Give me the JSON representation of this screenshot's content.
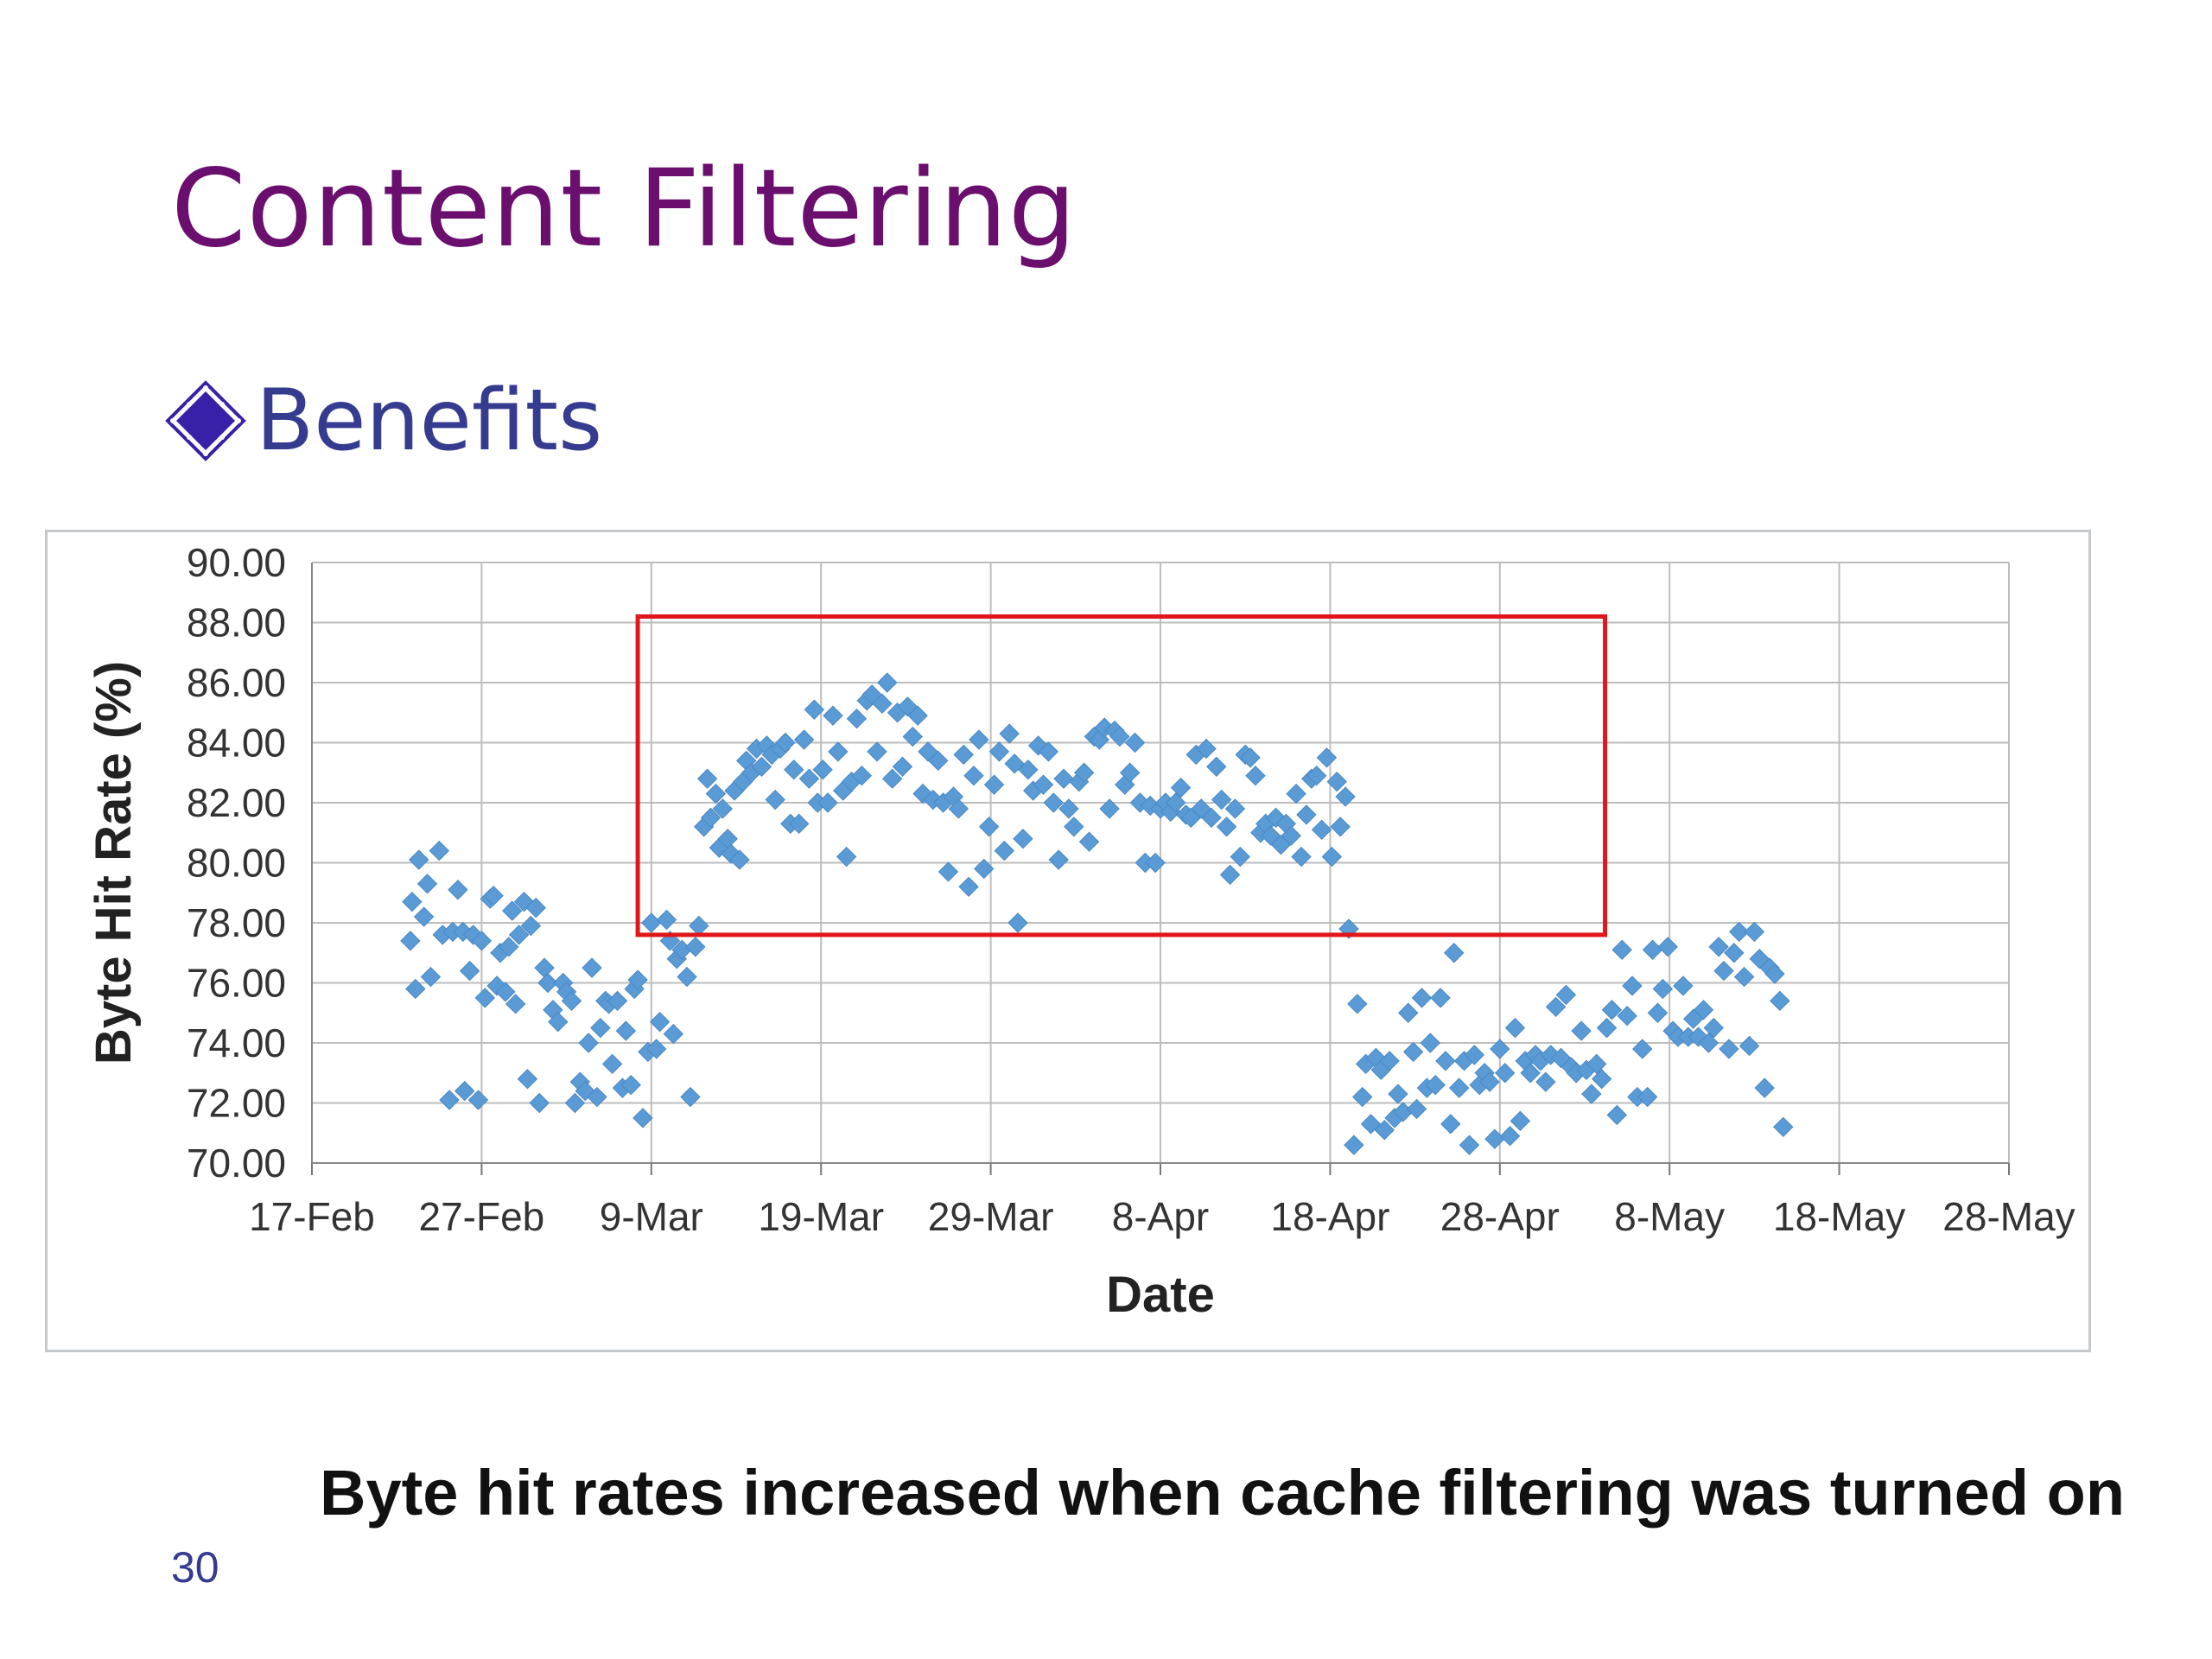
{
  "slide": {
    "title": "Content Filtering",
    "bullet": "Benefits",
    "caption": "Byte hit rates increased when cache filtering was turned on",
    "page_number": "30"
  },
  "colors": {
    "title": "#6a0f6e",
    "bullet_text": "#353b8f",
    "bullet_icon": "#3a1fa8",
    "marker": "#5b9bd5",
    "highlight_box": "#e0161b",
    "grid": "#bdbdbd"
  },
  "chart_data": {
    "type": "scatter",
    "xlabel": "Date",
    "ylabel": "Byte Hit Rate (%)",
    "ylim": [
      70,
      90
    ],
    "y_ticks": [
      "70.00",
      "72.00",
      "74.00",
      "76.00",
      "78.00",
      "80.00",
      "82.00",
      "84.00",
      "86.00",
      "88.00",
      "90.00"
    ],
    "x_ticks": [
      "17-Feb",
      "27-Feb",
      "9-Mar",
      "19-Mar",
      "29-Mar",
      "8-Apr",
      "18-Apr",
      "28-Apr",
      "8-May",
      "18-May",
      "28-May"
    ],
    "x_tick_days": [
      0,
      10,
      20,
      30,
      40,
      50,
      60,
      70,
      80,
      90,
      100
    ],
    "grid": true,
    "marker": "diamond",
    "highlight_region": {
      "x_range_days": [
        19.2,
        76.2
      ],
      "y_range": [
        77.6,
        88.2
      ]
    },
    "points": [
      [
        5.8,
        77.4
      ],
      [
        5.9,
        78.7
      ],
      [
        6.1,
        75.8
      ],
      [
        6.3,
        80.1
      ],
      [
        6.6,
        78.2
      ],
      [
        6.8,
        79.3
      ],
      [
        7.0,
        76.2
      ],
      [
        7.5,
        80.4
      ],
      [
        7.7,
        77.6
      ],
      [
        8.1,
        72.1
      ],
      [
        8.3,
        77.7
      ],
      [
        8.6,
        79.1
      ],
      [
        8.9,
        77.7
      ],
      [
        9.0,
        72.4
      ],
      [
        9.3,
        76.4
      ],
      [
        9.5,
        77.6
      ],
      [
        9.8,
        72.1
      ],
      [
        10.0,
        77.4
      ],
      [
        10.2,
        75.5
      ],
      [
        10.5,
        78.8
      ],
      [
        10.7,
        78.9
      ],
      [
        10.9,
        75.9
      ],
      [
        11.1,
        77.0
      ],
      [
        11.4,
        75.7
      ],
      [
        11.6,
        77.2
      ],
      [
        11.8,
        78.4
      ],
      [
        12.0,
        75.3
      ],
      [
        12.2,
        77.6
      ],
      [
        12.5,
        78.7
      ],
      [
        12.7,
        72.8
      ],
      [
        12.9,
        77.9
      ],
      [
        13.2,
        78.5
      ],
      [
        13.4,
        72.0
      ],
      [
        13.7,
        76.5
      ],
      [
        13.9,
        76.0
      ],
      [
        14.2,
        75.1
      ],
      [
        14.5,
        74.7
      ],
      [
        14.8,
        76.0
      ],
      [
        15.0,
        75.7
      ],
      [
        15.3,
        75.4
      ],
      [
        15.5,
        72.0
      ],
      [
        15.8,
        72.7
      ],
      [
        16.1,
        72.4
      ],
      [
        16.3,
        74.0
      ],
      [
        16.5,
        76.5
      ],
      [
        16.8,
        72.2
      ],
      [
        17.0,
        74.5
      ],
      [
        17.3,
        75.4
      ],
      [
        17.5,
        75.3
      ],
      [
        17.7,
        73.3
      ],
      [
        18.0,
        75.4
      ],
      [
        18.3,
        72.5
      ],
      [
        18.5,
        74.4
      ],
      [
        18.8,
        72.6
      ],
      [
        19.0,
        75.8
      ],
      [
        19.2,
        76.1
      ],
      [
        19.5,
        71.5
      ],
      [
        19.8,
        73.7
      ],
      [
        20.0,
        78.0
      ],
      [
        20.3,
        73.8
      ],
      [
        20.5,
        74.7
      ],
      [
        20.9,
        78.1
      ],
      [
        21.1,
        77.4
      ],
      [
        21.3,
        74.3
      ],
      [
        21.5,
        76.8
      ],
      [
        21.8,
        77.1
      ],
      [
        22.1,
        76.2
      ],
      [
        22.3,
        72.2
      ],
      [
        22.6,
        77.2
      ],
      [
        22.8,
        77.9
      ],
      [
        23.1,
        81.2
      ],
      [
        23.3,
        82.8
      ],
      [
        23.5,
        81.5
      ],
      [
        23.8,
        82.3
      ],
      [
        24.0,
        80.5
      ],
      [
        24.2,
        81.8
      ],
      [
        24.5,
        80.8
      ],
      [
        24.7,
        80.3
      ],
      [
        24.9,
        82.4
      ],
      [
        25.2,
        80.1
      ],
      [
        25.4,
        82.7
      ],
      [
        25.6,
        83.4
      ],
      [
        25.9,
        83.0
      ],
      [
        26.2,
        83.8
      ],
      [
        26.5,
        83.2
      ],
      [
        26.8,
        83.9
      ],
      [
        27.1,
        83.6
      ],
      [
        27.3,
        82.1
      ],
      [
        27.6,
        83.8
      ],
      [
        27.9,
        84.0
      ],
      [
        28.2,
        81.3
      ],
      [
        28.4,
        83.1
      ],
      [
        28.7,
        81.3
      ],
      [
        29.0,
        84.1
      ],
      [
        29.3,
        82.8
      ],
      [
        29.6,
        85.1
      ],
      [
        29.8,
        82.0
      ],
      [
        30.1,
        83.1
      ],
      [
        30.4,
        82.0
      ],
      [
        30.7,
        84.9
      ],
      [
        31.0,
        83.7
      ],
      [
        31.3,
        82.4
      ],
      [
        31.5,
        80.2
      ],
      [
        31.8,
        82.7
      ],
      [
        32.1,
        84.8
      ],
      [
        32.4,
        82.9
      ],
      [
        32.7,
        85.4
      ],
      [
        33.0,
        85.6
      ],
      [
        33.3,
        83.7
      ],
      [
        33.6,
        85.3
      ],
      [
        33.9,
        86.0
      ],
      [
        34.2,
        82.8
      ],
      [
        34.5,
        85.0
      ],
      [
        34.8,
        83.2
      ],
      [
        35.1,
        85.2
      ],
      [
        35.4,
        84.2
      ],
      [
        35.7,
        84.9
      ],
      [
        36.0,
        82.3
      ],
      [
        36.3,
        83.7
      ],
      [
        36.6,
        82.1
      ],
      [
        36.9,
        83.4
      ],
      [
        37.2,
        82.0
      ],
      [
        37.5,
        79.7
      ],
      [
        37.8,
        82.2
      ],
      [
        38.1,
        81.8
      ],
      [
        38.4,
        83.6
      ],
      [
        38.7,
        79.2
      ],
      [
        39.0,
        82.9
      ],
      [
        39.3,
        84.1
      ],
      [
        39.6,
        79.8
      ],
      [
        39.9,
        81.2
      ],
      [
        40.2,
        82.6
      ],
      [
        40.5,
        83.7
      ],
      [
        40.8,
        80.4
      ],
      [
        41.1,
        84.3
      ],
      [
        41.4,
        83.3
      ],
      [
        41.6,
        78.0
      ],
      [
        41.9,
        80.8
      ],
      [
        42.2,
        83.1
      ],
      [
        42.5,
        82.4
      ],
      [
        42.8,
        83.9
      ],
      [
        43.1,
        82.6
      ],
      [
        43.4,
        83.7
      ],
      [
        43.7,
        82.0
      ],
      [
        44.0,
        80.1
      ],
      [
        44.3,
        82.8
      ],
      [
        44.6,
        81.8
      ],
      [
        44.9,
        81.2
      ],
      [
        45.2,
        82.7
      ],
      [
        45.5,
        83.0
      ],
      [
        45.8,
        80.7
      ],
      [
        46.1,
        84.2
      ],
      [
        46.4,
        84.1
      ],
      [
        46.7,
        84.5
      ],
      [
        47.0,
        81.8
      ],
      [
        47.3,
        84.4
      ],
      [
        47.6,
        84.2
      ],
      [
        47.9,
        82.6
      ],
      [
        48.2,
        83.0
      ],
      [
        48.5,
        84.0
      ],
      [
        48.8,
        82.0
      ],
      [
        49.1,
        80.0
      ],
      [
        49.4,
        81.9
      ],
      [
        49.7,
        80.0
      ],
      [
        50.0,
        81.8
      ],
      [
        50.3,
        82.0
      ],
      [
        50.6,
        81.7
      ],
      [
        50.9,
        82.0
      ],
      [
        51.2,
        82.5
      ],
      [
        51.5,
        81.6
      ],
      [
        51.8,
        81.5
      ],
      [
        52.1,
        83.6
      ],
      [
        52.4,
        81.8
      ],
      [
        52.7,
        83.8
      ],
      [
        53.0,
        81.5
      ],
      [
        53.3,
        83.2
      ],
      [
        53.6,
        82.1
      ],
      [
        53.9,
        81.2
      ],
      [
        54.1,
        79.6
      ],
      [
        54.4,
        81.8
      ],
      [
        54.7,
        80.2
      ],
      [
        55.0,
        83.6
      ],
      [
        55.3,
        83.5
      ],
      [
        55.6,
        82.9
      ],
      [
        55.9,
        81.0
      ],
      [
        56.2,
        81.3
      ],
      [
        56.5,
        80.9
      ],
      [
        56.8,
        81.5
      ],
      [
        57.1,
        80.6
      ],
      [
        57.4,
        81.3
      ],
      [
        57.7,
        80.9
      ],
      [
        58.0,
        82.3
      ],
      [
        58.3,
        80.2
      ],
      [
        58.6,
        81.6
      ],
      [
        58.9,
        82.8
      ],
      [
        59.2,
        82.9
      ],
      [
        59.5,
        81.1
      ],
      [
        59.8,
        83.5
      ],
      [
        60.1,
        80.2
      ],
      [
        60.4,
        82.7
      ],
      [
        60.6,
        81.2
      ],
      [
        60.9,
        82.2
      ],
      [
        61.1,
        77.8
      ],
      [
        61.4,
        70.6
      ],
      [
        61.6,
        75.3
      ],
      [
        61.9,
        72.2
      ],
      [
        62.1,
        73.3
      ],
      [
        62.4,
        71.3
      ],
      [
        62.7,
        73.5
      ],
      [
        63.0,
        73.1
      ],
      [
        63.2,
        71.1
      ],
      [
        63.5,
        73.4
      ],
      [
        63.8,
        71.5
      ],
      [
        64.0,
        72.3
      ],
      [
        64.3,
        71.7
      ],
      [
        64.6,
        75.0
      ],
      [
        64.9,
        73.7
      ],
      [
        65.1,
        71.8
      ],
      [
        65.4,
        75.5
      ],
      [
        65.7,
        72.5
      ],
      [
        65.9,
        74.0
      ],
      [
        66.2,
        72.6
      ],
      [
        66.5,
        75.5
      ],
      [
        66.8,
        73.4
      ],
      [
        67.1,
        71.3
      ],
      [
        67.3,
        77.0
      ],
      [
        67.6,
        72.5
      ],
      [
        67.9,
        73.4
      ],
      [
        68.2,
        70.6
      ],
      [
        68.5,
        73.6
      ],
      [
        68.8,
        72.6
      ],
      [
        69.1,
        73.0
      ],
      [
        69.4,
        72.7
      ],
      [
        69.7,
        70.8
      ],
      [
        70.0,
        73.8
      ],
      [
        70.3,
        73.0
      ],
      [
        70.6,
        70.9
      ],
      [
        70.9,
        74.5
      ],
      [
        71.2,
        71.4
      ],
      [
        71.5,
        73.4
      ],
      [
        71.8,
        73.0
      ],
      [
        72.1,
        73.6
      ],
      [
        72.4,
        73.4
      ],
      [
        72.7,
        72.7
      ],
      [
        73.0,
        73.6
      ],
      [
        73.3,
        75.2
      ],
      [
        73.6,
        73.5
      ],
      [
        73.9,
        75.6
      ],
      [
        74.2,
        73.2
      ],
      [
        74.5,
        73.0
      ],
      [
        74.8,
        74.4
      ],
      [
        75.1,
        73.1
      ],
      [
        75.4,
        72.3
      ],
      [
        75.7,
        73.3
      ],
      [
        76.0,
        72.8
      ],
      [
        76.3,
        74.5
      ],
      [
        76.6,
        75.1
      ],
      [
        76.9,
        71.6
      ],
      [
        77.2,
        77.1
      ],
      [
        77.5,
        74.9
      ],
      [
        77.8,
        75.9
      ],
      [
        78.1,
        72.2
      ],
      [
        78.4,
        73.8
      ],
      [
        78.7,
        72.2
      ],
      [
        79.0,
        77.1
      ],
      [
        79.3,
        75.0
      ],
      [
        79.6,
        75.8
      ],
      [
        79.9,
        77.2
      ],
      [
        80.2,
        74.4
      ],
      [
        80.5,
        74.2
      ],
      [
        80.8,
        75.9
      ],
      [
        81.1,
        74.2
      ],
      [
        81.4,
        74.8
      ],
      [
        81.7,
        74.2
      ],
      [
        82.0,
        75.1
      ],
      [
        82.3,
        74.0
      ],
      [
        82.6,
        74.5
      ],
      [
        82.9,
        77.2
      ],
      [
        83.2,
        76.4
      ],
      [
        83.5,
        73.8
      ],
      [
        83.8,
        77.0
      ],
      [
        84.1,
        77.7
      ],
      [
        84.4,
        76.2
      ],
      [
        84.7,
        73.9
      ],
      [
        85.0,
        77.7
      ],
      [
        85.3,
        76.8
      ],
      [
        85.6,
        72.5
      ],
      [
        85.9,
        76.5
      ],
      [
        86.2,
        76.3
      ],
      [
        86.5,
        75.4
      ],
      [
        86.7,
        71.2
      ]
    ]
  }
}
